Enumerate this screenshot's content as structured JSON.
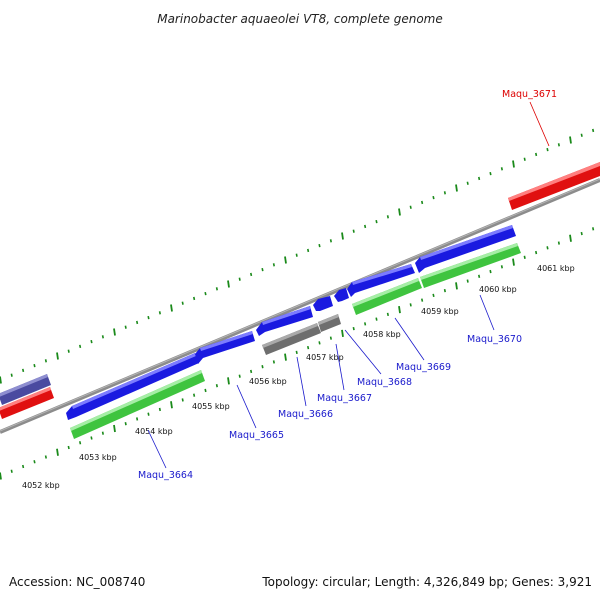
{
  "title": "Marinobacter aquaeolei VT8, complete genome",
  "footer": {
    "accession": "Accession: NC_008740",
    "summary": "Topology: circular; Length: 4,326,849 bp; Genes: 3,921"
  },
  "colors": {
    "gene_blue": "#1a1ae0",
    "gene_green": "#3fc43f",
    "gene_grey": "#6e6e6e",
    "gene_red": "#e01010",
    "gene_slate": "#4a4aa0",
    "backbone": "#8c8c8c",
    "tick": "#1a8a1a",
    "label_blue": "#1a1acc",
    "label_red": "#dd0000"
  },
  "scale_labels": {
    "k4052": "4052 kbp",
    "k4053": "4053 kbp",
    "k4054": "4054 kbp",
    "k4055": "4055 kbp",
    "k4056": "4056 kbp",
    "k4057": "4057 kbp",
    "k4058": "4058 kbp",
    "k4059": "4059 kbp",
    "k4060": "4060 kbp",
    "k4061": "4061 kbp"
  },
  "genes": {
    "maqu_3664": "Maqu_3664",
    "maqu_3665": "Maqu_3665",
    "maqu_3666": "Maqu_3666",
    "maqu_3667": "Maqu_3667",
    "maqu_3668": "Maqu_3668",
    "maqu_3669": "Maqu_3669",
    "maqu_3670": "Maqu_3670",
    "maqu_3671": "Maqu_3671"
  }
}
